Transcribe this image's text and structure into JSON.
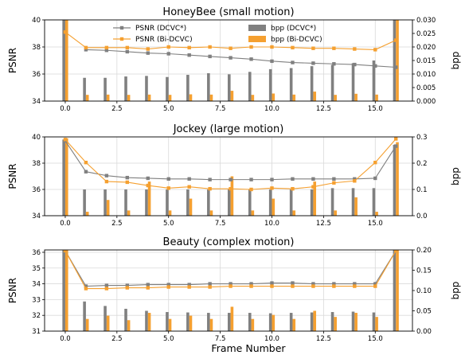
{
  "figure": {
    "xlabel": "Frame Number",
    "colors": {
      "dcvc": "#808080",
      "bi": "#f5a030",
      "grid": "#d9d9d9"
    }
  },
  "legend": {
    "entries": [
      "PSNR (DCVC*)",
      "PSNR (Bi-DCVC)",
      "bpp (DCVC*)",
      "bpp (Bi-DCVC)"
    ]
  },
  "chart_data": [
    {
      "type": "bar+line",
      "title": "HoneyBee (small motion)",
      "ylabel_left": "PSNR",
      "ylabel_right": "bpp",
      "ylim_left": [
        34,
        40
      ],
      "ylim_right": [
        0,
        0.03
      ],
      "yticks_left": [
        "34",
        "36",
        "38",
        "40"
      ],
      "yticks_right": [
        "0.000",
        "0.005",
        "0.010",
        "0.015",
        "0.020",
        "0.025",
        "0.030"
      ],
      "xlim": [
        -1,
        16.8
      ],
      "xticks": [
        "0.0",
        "2.5",
        "5.0",
        "7.5",
        "10.0",
        "12.5",
        "15.0"
      ],
      "x": [
        0,
        1,
        2,
        3,
        4,
        5,
        6,
        7,
        8,
        9,
        10,
        11,
        12,
        13,
        14,
        15,
        16
      ],
      "series": [
        {
          "name": "PSNR (DCVC*)",
          "kind": "line",
          "axis": "left",
          "x": [
            1,
            2,
            3,
            4,
            5,
            6,
            7,
            8,
            9,
            10,
            11,
            12,
            13,
            14,
            15,
            16
          ],
          "values": [
            37.8,
            37.75,
            37.65,
            37.55,
            37.5,
            37.4,
            37.3,
            37.2,
            37.1,
            36.95,
            36.85,
            36.8,
            36.75,
            36.7,
            36.6,
            36.5
          ]
        },
        {
          "name": "PSNR (Bi-DCVC)",
          "kind": "line",
          "axis": "left",
          "x": [
            0,
            1,
            2,
            3,
            4,
            5,
            6,
            7,
            8,
            9,
            10,
            11,
            12,
            13,
            14,
            15,
            16
          ],
          "values": [
            39.1,
            37.95,
            37.95,
            37.95,
            37.85,
            38.0,
            37.95,
            38.0,
            37.9,
            38.0,
            38.0,
            37.95,
            37.9,
            37.9,
            37.85,
            37.8,
            38.5
          ]
        },
        {
          "name": "bpp (DCVC*)",
          "kind": "bar",
          "axis": "right",
          "values": [
            0.032,
            0.0086,
            0.0086,
            0.0091,
            0.0093,
            0.0089,
            0.0097,
            0.0103,
            0.0099,
            0.0108,
            0.0118,
            0.0122,
            0.0129,
            0.0134,
            0.014,
            0.015,
            0.032
          ]
        },
        {
          "name": "bpp (Bi-DCVC)",
          "kind": "bar",
          "axis": "right",
          "values": [
            0.032,
            0.0023,
            0.0024,
            0.0023,
            0.0024,
            0.0023,
            0.0025,
            0.0024,
            0.0038,
            0.0023,
            0.0028,
            0.0024,
            0.0035,
            0.0023,
            0.0027,
            0.0024,
            0.032
          ]
        }
      ]
    },
    {
      "type": "bar+line",
      "title": "Jockey (large motion)",
      "ylabel_left": "PSNR",
      "ylabel_right": "bpp",
      "ylim_left": [
        34,
        40
      ],
      "ylim_right": [
        0,
        0.3
      ],
      "yticks_left": [
        "34",
        "36",
        "38",
        "40"
      ],
      "yticks_right": [
        "0.0",
        "0.1",
        "0.2",
        "0.3"
      ],
      "xlim": [
        -1,
        16.8
      ],
      "xticks": [
        "0.0",
        "2.5",
        "5.0",
        "7.5",
        "10.0",
        "12.5",
        "15.0"
      ],
      "x": [
        0,
        1,
        2,
        3,
        4,
        5,
        6,
        7,
        8,
        9,
        10,
        11,
        12,
        13,
        14,
        15,
        16
      ],
      "series": [
        {
          "name": "PSNR (DCVC*)",
          "kind": "line",
          "axis": "left",
          "x": [
            0,
            1,
            2,
            3,
            4,
            5,
            6,
            7,
            8,
            9,
            10,
            11,
            12,
            13,
            14,
            15,
            16
          ],
          "values": [
            39.7,
            37.35,
            37.05,
            36.9,
            36.85,
            36.8,
            36.8,
            36.75,
            36.75,
            36.75,
            36.75,
            36.8,
            36.8,
            36.8,
            36.8,
            36.85,
            39.3
          ]
        },
        {
          "name": "PSNR (Bi-DCVC)",
          "kind": "line",
          "axis": "left",
          "x": [
            0,
            1,
            2,
            3,
            4,
            5,
            6,
            7,
            8,
            9,
            10,
            11,
            12,
            13,
            14,
            15,
            16
          ],
          "values": [
            39.8,
            38.05,
            36.6,
            36.55,
            36.3,
            36.1,
            36.2,
            36.05,
            36.05,
            36.0,
            36.1,
            36.05,
            36.2,
            36.5,
            36.65,
            38.05,
            39.85
          ]
        },
        {
          "name": "bpp (DCVC*)",
          "kind": "bar",
          "axis": "right",
          "values": [
            0.29,
            0.1,
            0.1,
            0.1,
            0.1,
            0.1,
            0.1,
            0.1,
            0.1,
            0.1,
            0.1,
            0.1,
            0.1,
            0.105,
            0.105,
            0.105,
            0.27
          ]
        },
        {
          "name": "bpp (Bi-DCVC)",
          "kind": "bar",
          "axis": "right",
          "values": [
            0.295,
            0.015,
            0.06,
            0.02,
            0.13,
            0.02,
            0.065,
            0.02,
            0.15,
            0.02,
            0.065,
            0.02,
            0.13,
            0.02,
            0.07,
            0.015,
            0.28
          ]
        }
      ]
    },
    {
      "type": "bar+line",
      "title": "Beauty (complex motion)",
      "ylabel_left": "PSNR",
      "ylabel_right": "bpp",
      "ylim_left": [
        31,
        36.15
      ],
      "ylim_right": [
        0,
        0.2
      ],
      "yticks_left": [
        "31",
        "32",
        "33",
        "34",
        "35",
        "36"
      ],
      "yticks_right": [
        "0.00",
        "0.05",
        "0.10",
        "0.15",
        "0.20"
      ],
      "xlim": [
        -1,
        16.8
      ],
      "xticks": [
        "0.0",
        "2.5",
        "5.0",
        "7.5",
        "10.0",
        "12.5",
        "15.0"
      ],
      "x": [
        0,
        1,
        2,
        3,
        4,
        5,
        6,
        7,
        8,
        9,
        10,
        11,
        12,
        13,
        14,
        15,
        16
      ],
      "series": [
        {
          "name": "PSNR (DCVC*)",
          "kind": "line",
          "axis": "left",
          "x": [
            0,
            1,
            2,
            3,
            4,
            5,
            6,
            7,
            8,
            9,
            10,
            11,
            12,
            13,
            14,
            15,
            16
          ],
          "values": [
            36.1,
            33.85,
            33.9,
            33.9,
            33.95,
            33.95,
            33.95,
            34.0,
            34.0,
            34.0,
            34.05,
            34.05,
            34.0,
            34.0,
            34.0,
            34.0,
            36.1
          ]
        },
        {
          "name": "PSNR (Bi-DCVC)",
          "kind": "line",
          "axis": "left",
          "x": [
            0,
            1,
            2,
            3,
            4,
            5,
            6,
            7,
            8,
            9,
            10,
            11,
            12,
            13,
            14,
            15,
            16
          ],
          "values": [
            36.1,
            33.7,
            33.7,
            33.75,
            33.75,
            33.8,
            33.8,
            33.8,
            33.85,
            33.85,
            33.85,
            33.85,
            33.85,
            33.85,
            33.85,
            33.85,
            36.1
          ]
        },
        {
          "name": "bpp (DCVC*)",
          "kind": "bar",
          "axis": "right",
          "values": [
            0.21,
            0.073,
            0.062,
            0.055,
            0.05,
            0.047,
            0.046,
            0.045,
            0.045,
            0.045,
            0.044,
            0.045,
            0.046,
            0.047,
            0.048,
            0.046,
            0.21
          ]
        },
        {
          "name": "bpp (Bi-DCVC)",
          "kind": "bar",
          "axis": "right",
          "values": [
            0.21,
            0.03,
            0.038,
            0.027,
            0.045,
            0.03,
            0.038,
            0.03,
            0.06,
            0.03,
            0.04,
            0.03,
            0.05,
            0.035,
            0.045,
            0.035,
            0.21
          ]
        }
      ]
    }
  ]
}
